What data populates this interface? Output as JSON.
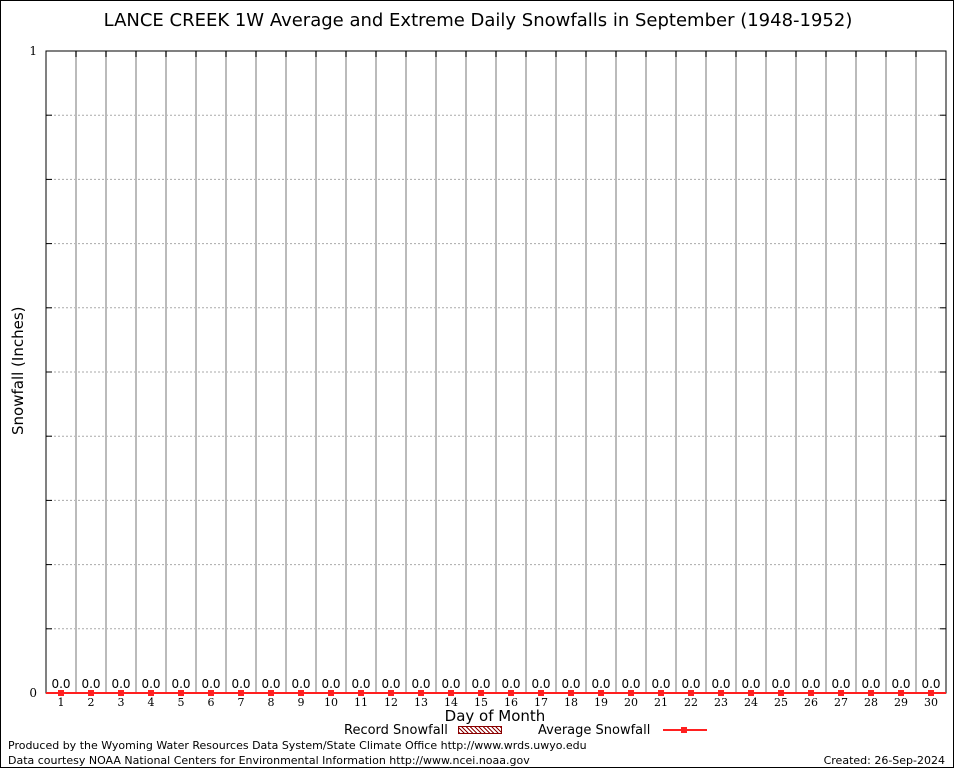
{
  "chart_data": {
    "type": "bar",
    "title": "LANCE CREEK 1W Average and Extreme Daily Snowfalls in September (1948-1952)",
    "xlabel": "Day of Month",
    "ylabel": "Snowfall (Inches)",
    "ylim": [
      0,
      1
    ],
    "yticks": [
      "0",
      "1"
    ],
    "grid": true,
    "categories": [
      "1",
      "2",
      "3",
      "4",
      "5",
      "6",
      "7",
      "8",
      "9",
      "10",
      "11",
      "12",
      "13",
      "14",
      "15",
      "16",
      "17",
      "18",
      "19",
      "20",
      "21",
      "22",
      "23",
      "24",
      "25",
      "26",
      "27",
      "28",
      "29",
      "30"
    ],
    "series": [
      {
        "name": "Record Snowfall",
        "type": "bar",
        "color": "#8b0000",
        "values": [
          0,
          0,
          0,
          0,
          0,
          0,
          0,
          0,
          0,
          0,
          0,
          0,
          0,
          0,
          0,
          0,
          0,
          0,
          0,
          0,
          0,
          0,
          0,
          0,
          0,
          0,
          0,
          0,
          0,
          0
        ]
      },
      {
        "name": "Average Snowfall",
        "type": "line",
        "color": "#ff2020",
        "values": [
          0,
          0,
          0,
          0,
          0,
          0,
          0,
          0,
          0,
          0,
          0,
          0,
          0,
          0,
          0,
          0,
          0,
          0,
          0,
          0,
          0,
          0,
          0,
          0,
          0,
          0,
          0,
          0,
          0,
          0
        ]
      }
    ],
    "data_labels": [
      "0.0",
      "0.0",
      "0.0",
      "0.0",
      "0.0",
      "0.0",
      "0.0",
      "0.0",
      "0.0",
      "0.0",
      "0.0",
      "0.0",
      "0.0",
      "0.0",
      "0.0",
      "0.0",
      "0.0",
      "0.0",
      "0.0",
      "0.0",
      "0.0",
      "0.0",
      "0.0",
      "0.0",
      "0.0",
      "0.0",
      "0.0",
      "0.0",
      "0.0",
      "0.0"
    ],
    "legend_placement": "bottom"
  },
  "footer": {
    "line1": "Produced by the Wyoming Water Resources Data System/State Climate Office http://www.wrds.uwyo.edu",
    "line2": "Data courtesy NOAA National Centers for Environmental Information http://www.ncei.noaa.gov",
    "created": "Created:  26-Sep-2024"
  }
}
